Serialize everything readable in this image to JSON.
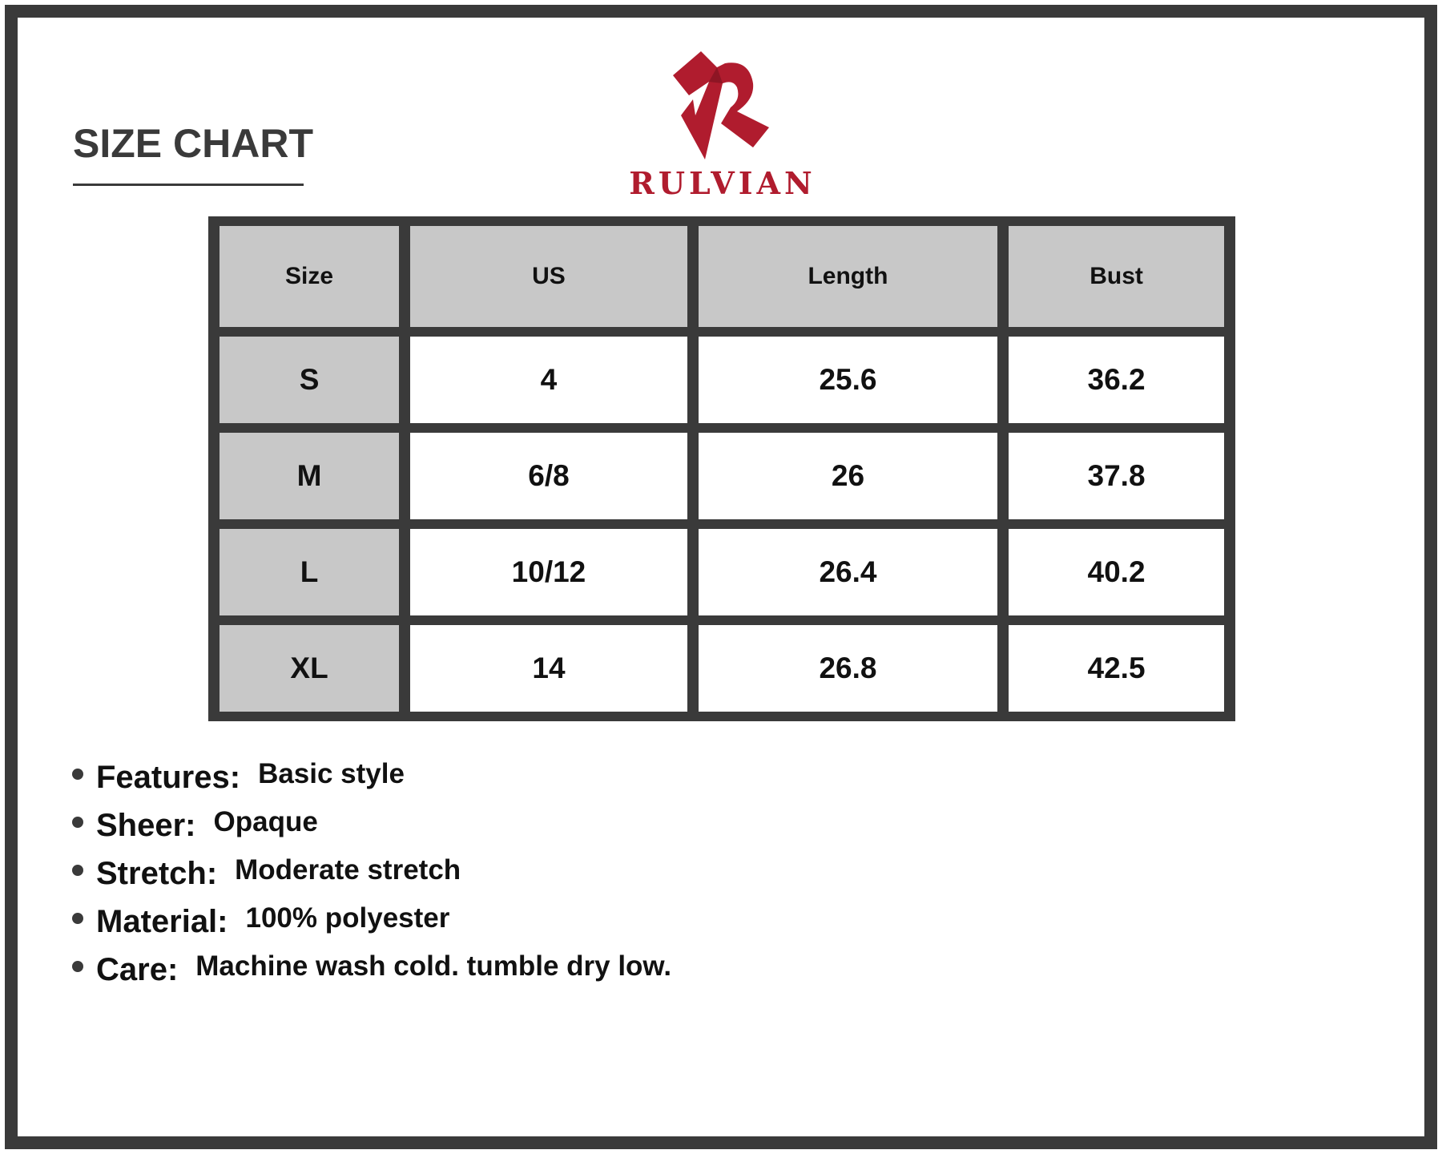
{
  "title": "SIZE CHART",
  "brand": {
    "name": "RULVIAN",
    "color": "#b01c2e"
  },
  "table": {
    "headers": [
      "Size",
      "US",
      "Length",
      "Bust"
    ],
    "rows": [
      [
        "S",
        "4",
        "25.6",
        "36.2"
      ],
      [
        "M",
        "6/8",
        "26",
        "37.8"
      ],
      [
        "L",
        "10/12",
        "26.4",
        "40.2"
      ],
      [
        "XL",
        "14",
        "26.8",
        "42.5"
      ]
    ]
  },
  "features": [
    {
      "label": "Features:",
      "value": "Basic style"
    },
    {
      "label": "Sheer:",
      "value": "Opaque"
    },
    {
      "label": "Stretch:",
      "value": "Moderate stretch"
    },
    {
      "label": "Material:",
      "value": "100% polyester"
    },
    {
      "label": "Care:",
      "value": "Machine wash cold. tumble dry low."
    }
  ]
}
